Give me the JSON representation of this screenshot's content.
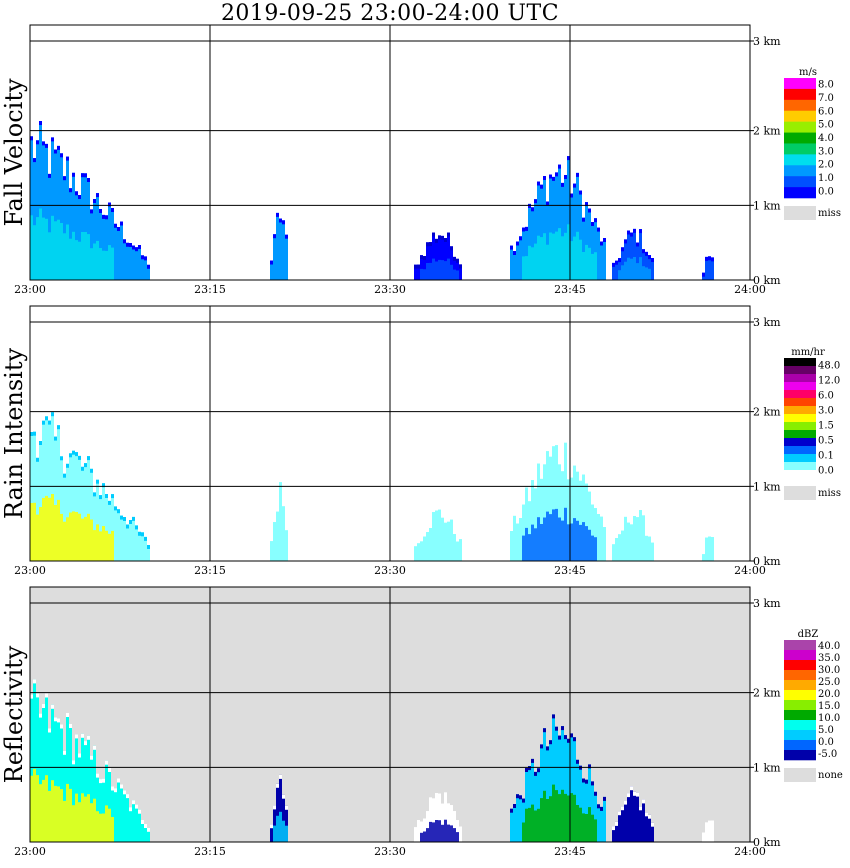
{
  "title": "2019-09-25   23:00-24:00 UTC",
  "chart_data": [
    {
      "type": "heatmap",
      "ylabel": "Fall Velocity",
      "x_ticks": [
        "23:00",
        "23:15",
        "23:30",
        "23:45",
        "24:00"
      ],
      "y_ticks": [
        "0 km",
        "1 km",
        "2 km",
        "3 km"
      ],
      "ylim": [
        0,
        3.2
      ],
      "background": "#ffffff",
      "colorbar": {
        "unit": "m/s",
        "colors": [
          "#0000ff",
          "#0050ff",
          "#0099ff",
          "#00ddee",
          "#00cc66",
          "#00aa00",
          "#99ee00",
          "#ffcc00",
          "#ff6600",
          "#ff0000",
          "#ff00ff"
        ],
        "labels": [
          "0.0",
          "1.0",
          "2.0",
          "3.0",
          "4.0",
          "5.0",
          "6.0",
          "7.0",
          "8.0"
        ],
        "missing_color": "#dddddd",
        "missing_label": "miss"
      },
      "echoes": [
        {
          "t_start": 0,
          "t_end": 10,
          "top_km": 2.0,
          "main_color": "#0099ff",
          "edge_color": "#0000ff",
          "core_color": "#00ddee"
        },
        {
          "t_start": 20,
          "t_end": 21.5,
          "top_km": 1.0,
          "main_color": "#0099ff",
          "edge_color": "#0000ff",
          "core_color": "#0099ff"
        },
        {
          "t_start": 32,
          "t_end": 36,
          "top_km": 0.7,
          "main_color": "#0000ff",
          "edge_color": "#0000cc",
          "core_color": "#0050ff"
        },
        {
          "t_start": 40,
          "t_end": 48,
          "top_km": 1.6,
          "main_color": "#0099ff",
          "edge_color": "#0000ff",
          "core_color": "#00ddee"
        },
        {
          "t_start": 48.5,
          "t_end": 52,
          "top_km": 0.7,
          "main_color": "#0050ff",
          "edge_color": "#0000ff",
          "core_color": "#0099ff"
        },
        {
          "t_start": 56,
          "t_end": 57,
          "top_km": 0.4,
          "main_color": "#0050ff",
          "edge_color": "#0000ff",
          "core_color": "#0050ff"
        }
      ]
    },
    {
      "type": "heatmap",
      "ylabel": "Rain Intensity",
      "x_ticks": [
        "23:00",
        "23:15",
        "23:30",
        "23:45",
        "24:00"
      ],
      "y_ticks": [
        "0 km",
        "1 km",
        "2 km",
        "3 km"
      ],
      "ylim": [
        0,
        3.2
      ],
      "background": "#ffffff",
      "colorbar": {
        "unit": "mm/hr",
        "colors": [
          "#ffffff",
          "#88ffff",
          "#00ccff",
          "#0066ff",
          "#0000cc",
          "#00aa00",
          "#88ee00",
          "#ffff00",
          "#ffaa00",
          "#ff4400",
          "#ff0066",
          "#ee00ee",
          "#aa00aa",
          "#660066",
          "#000000"
        ],
        "labels": [
          "0.0",
          "0.1",
          "0.5",
          "1.5",
          "3.0",
          "6.0",
          "12.0",
          "48.0"
        ],
        "missing_color": "#dddddd",
        "missing_label": "miss"
      },
      "echoes": [
        {
          "t_start": 0,
          "t_end": 10,
          "top_km": 2.0,
          "main_color": "#88ffff",
          "edge_color": "#00ccff",
          "core_color": "#ffff00"
        },
        {
          "t_start": 20,
          "t_end": 21.5,
          "top_km": 1.0,
          "main_color": "#88ffff",
          "edge_color": "#88ffff",
          "core_color": "#88ffff"
        },
        {
          "t_start": 32,
          "t_end": 36,
          "top_km": 0.7,
          "main_color": "#88ffff",
          "edge_color": "#88ffff",
          "core_color": "#88ffff"
        },
        {
          "t_start": 40,
          "t_end": 48,
          "top_km": 1.6,
          "main_color": "#88ffff",
          "edge_color": "#88ffff",
          "core_color": "#0066ff"
        },
        {
          "t_start": 48.5,
          "t_end": 52,
          "top_km": 0.7,
          "main_color": "#88ffff",
          "edge_color": "#88ffff",
          "core_color": "#88ffff"
        },
        {
          "t_start": 56,
          "t_end": 57,
          "top_km": 0.4,
          "main_color": "#88ffff",
          "edge_color": "#88ffff",
          "core_color": "#88ffff"
        }
      ]
    },
    {
      "type": "heatmap",
      "ylabel": "Reflectivity",
      "x_ticks": [
        "23:00",
        "23:15",
        "23:30",
        "23:45",
        "24:00"
      ],
      "y_ticks": [
        "0 km",
        "1 km",
        "2 km",
        "3 km"
      ],
      "ylim": [
        0,
        3.2
      ],
      "background": "#dddddd",
      "colorbar": {
        "unit": "dBZ",
        "colors": [
          "#0000aa",
          "#0066ff",
          "#00ccff",
          "#00ffee",
          "#00aa00",
          "#88ee00",
          "#ffff00",
          "#ffaa00",
          "#ff6600",
          "#ff0000",
          "#cc00cc",
          "#aa44aa"
        ],
        "labels": [
          "-5.0",
          "0.0",
          "5.0",
          "10.0",
          "15.0",
          "20.0",
          "25.0",
          "30.0",
          "35.0",
          "40.0"
        ],
        "missing_color": "#dddddd",
        "missing_label": "none"
      },
      "echoes": [
        {
          "t_start": 0,
          "t_end": 10,
          "top_km": 2.0,
          "main_color": "#00ffee",
          "edge_color": "#ffffff",
          "core_color": "#ffff00"
        },
        {
          "t_start": 20,
          "t_end": 21.5,
          "top_km": 1.0,
          "main_color": "#0000aa",
          "edge_color": "#ffffff",
          "core_color": "#00ccff"
        },
        {
          "t_start": 32,
          "t_end": 36,
          "top_km": 0.7,
          "main_color": "#ffffff",
          "edge_color": "#ffffff",
          "core_color": "#0000aa"
        },
        {
          "t_start": 40,
          "t_end": 48,
          "top_km": 1.6,
          "main_color": "#00ccff",
          "edge_color": "#0000aa",
          "core_color": "#00aa00"
        },
        {
          "t_start": 48.5,
          "t_end": 52,
          "top_km": 0.7,
          "main_color": "#0000aa",
          "edge_color": "#ffffff",
          "core_color": "#0000aa"
        },
        {
          "t_start": 56,
          "t_end": 57,
          "top_km": 0.4,
          "main_color": "#ffffff",
          "edge_color": "#ffffff",
          "core_color": "#ffffff"
        }
      ]
    }
  ]
}
